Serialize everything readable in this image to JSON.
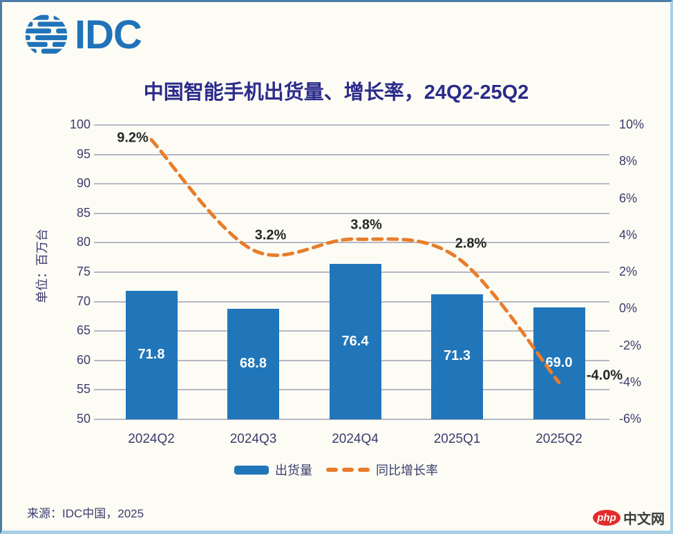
{
  "logo": {
    "text": "IDC"
  },
  "chart_data": {
    "type": "combo-bar-line",
    "title": "中国智能手机出货量、增长率，24Q2-25Q2",
    "categories": [
      "2024Q2",
      "2024Q3",
      "2024Q4",
      "2025Q1",
      "2025Q2"
    ],
    "series": [
      {
        "name": "出货量",
        "type": "bar",
        "axis": "left",
        "values": [
          71.8,
          68.8,
          76.4,
          71.3,
          69.0
        ],
        "labels": [
          "71.8",
          "68.8",
          "76.4",
          "71.3",
          "69.0"
        ]
      },
      {
        "name": "同比增长率",
        "type": "line",
        "axis": "right",
        "style": "dashed",
        "values": [
          9.2,
          3.2,
          3.8,
          2.8,
          -4.0
        ],
        "labels": [
          "9.2%",
          "3.2%",
          "3.8%",
          "2.8%",
          "-4.0%"
        ]
      }
    ],
    "left_axis": {
      "label": "单位：百万台",
      "min": 50,
      "max": 100,
      "step": 5,
      "ticks": [
        "100",
        "95",
        "90",
        "85",
        "80",
        "75",
        "70",
        "65",
        "60",
        "55",
        "50"
      ]
    },
    "right_axis": {
      "min": -6,
      "max": 10,
      "step": 2,
      "ticks": [
        "10%",
        "8%",
        "6%",
        "4%",
        "2%",
        "0%",
        "-2%",
        "-4%",
        "-6%"
      ]
    },
    "grid": true,
    "legend_position": "bottom",
    "legend": [
      {
        "label": "出货量",
        "marker": "bar"
      },
      {
        "label": "同比增长率",
        "marker": "dashed-line"
      }
    ]
  },
  "source": {
    "text": "来源：IDC中国，2025"
  },
  "watermark": {
    "badge": "php",
    "text": "中文网"
  },
  "colors": {
    "bar": "#2176b9",
    "line": "#e87d2b",
    "title_text": "#2b2b8c",
    "axis_text": "#3c3c6e",
    "grid_line": "#b6b6c4",
    "data_label": "#262626",
    "bar_label": "#ffffff",
    "logo_blue": "#2073b8",
    "watermark_red": "#e32b2b",
    "background": "#fcfcf5",
    "frame_dark": "#4b7da6",
    "frame_light": "#a7cfe8"
  }
}
